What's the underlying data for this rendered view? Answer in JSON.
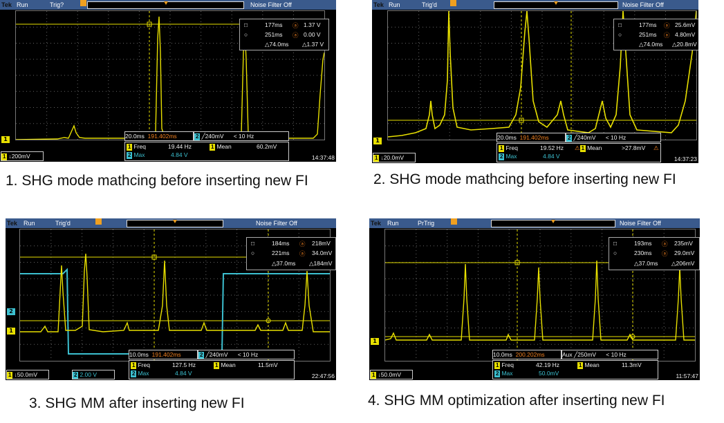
{
  "colors": {
    "ch1": "#e8e000",
    "ch2": "#3cc0d0",
    "frame": "#3a5a8c",
    "screen": "#000000",
    "accent": "#f08020"
  },
  "panels": [
    {
      "tek": "Tek",
      "mode": "Run",
      "trig_state": "Trig?",
      "noise": "Noise Filter Off",
      "cursor1_time": "177ms",
      "cursor1_val": "1.37 V",
      "cursor2_time": "251ms",
      "cursor2_val": "0.00 V",
      "delta_time": "△74.0ms",
      "delta_val": "△1.37 V",
      "timebase": "20.0ms",
      "trig_pos": "191.402ms",
      "trig_src": "2",
      "trig_level": "╱240mV",
      "trig_freq": "< 10 Hz",
      "m1_label": "Freq",
      "m1_val": "19.44 Hz",
      "m2_label": "Mean",
      "m2_val": "60.2mV",
      "m3_label": "Max",
      "m3_val": "4.84 V",
      "ch1_scale": "↓200mV",
      "ch2_scale": "",
      "time": "14:37:48",
      "caption": "1. SHG mode mathcing before inserting new FI"
    },
    {
      "tek": "Tek",
      "mode": "Run",
      "trig_state": "Trig'd",
      "noise": "Noise Filter Off",
      "cursor1_time": "177ms",
      "cursor1_val": "25.6mV",
      "cursor2_time": "251ms",
      "cursor2_val": "4.80mV",
      "delta_time": "△74.0ms",
      "delta_val": "△20.8mV",
      "timebase": "20.0ms",
      "trig_pos": "191.402ms",
      "trig_src": "2",
      "trig_level": "╱240mV",
      "trig_freq": "< 10 Hz",
      "m1_label": "Freq",
      "m1_val": "19.52 Hz",
      "m2_label": "Mean",
      "m2_val": ">27.8mV",
      "m3_label": "Max",
      "m3_val": "4.84 V",
      "ch1_scale": "↓20.0mV",
      "ch2_scale": "",
      "time": "14:37:23",
      "caption": "2. SHG mode mathcing before inserting new FI"
    },
    {
      "tek": "Tek",
      "mode": "Run",
      "trig_state": "Trig'd",
      "noise": "Noise Filter Off",
      "cursor1_time": "184ms",
      "cursor1_val": "218mV",
      "cursor2_time": "221ms",
      "cursor2_val": "34.0mV",
      "delta_time": "△37.0ms",
      "delta_val": "△184mV",
      "timebase": "10.0ms",
      "trig_pos": "191.402ms",
      "trig_src": "2",
      "trig_level": "╱240mV",
      "trig_freq": "< 10 Hz",
      "m1_label": "Freq",
      "m1_val": "127.5 Hz",
      "m2_label": "Mean",
      "m2_val": "11.5mV",
      "m3_label": "Max",
      "m3_val": "4.84 V",
      "ch1_scale": "↓50.0mV",
      "ch2_scale": "2.00 V",
      "time": "22:47:56",
      "caption": "3. SHG  MM after inserting new FI"
    },
    {
      "tek": "Tek",
      "mode": "Run",
      "trig_state": "PrTrig",
      "noise": "Noise Filter Off",
      "cursor1_time": "193ms",
      "cursor1_val": "235mV",
      "cursor2_time": "230ms",
      "cursor2_val": "29.0mV",
      "delta_time": "△37.0ms",
      "delta_val": "△206mV",
      "timebase": "10.0ms",
      "trig_pos": "200.202ms",
      "trig_src": "Aux",
      "trig_level": "╱250mV",
      "trig_freq": "< 10 Hz",
      "m1_label": "Freq",
      "m1_val": "42.19 Hz",
      "m2_label": "Mean",
      "m2_val": "11.3mV",
      "m3_label": "Max",
      "m3_val": "50.0mV",
      "ch1_scale": "↓50.0mV",
      "ch2_scale": "",
      "time": "11:57:47",
      "caption": "4. SHG MM optimization after inserting new FI"
    }
  ]
}
